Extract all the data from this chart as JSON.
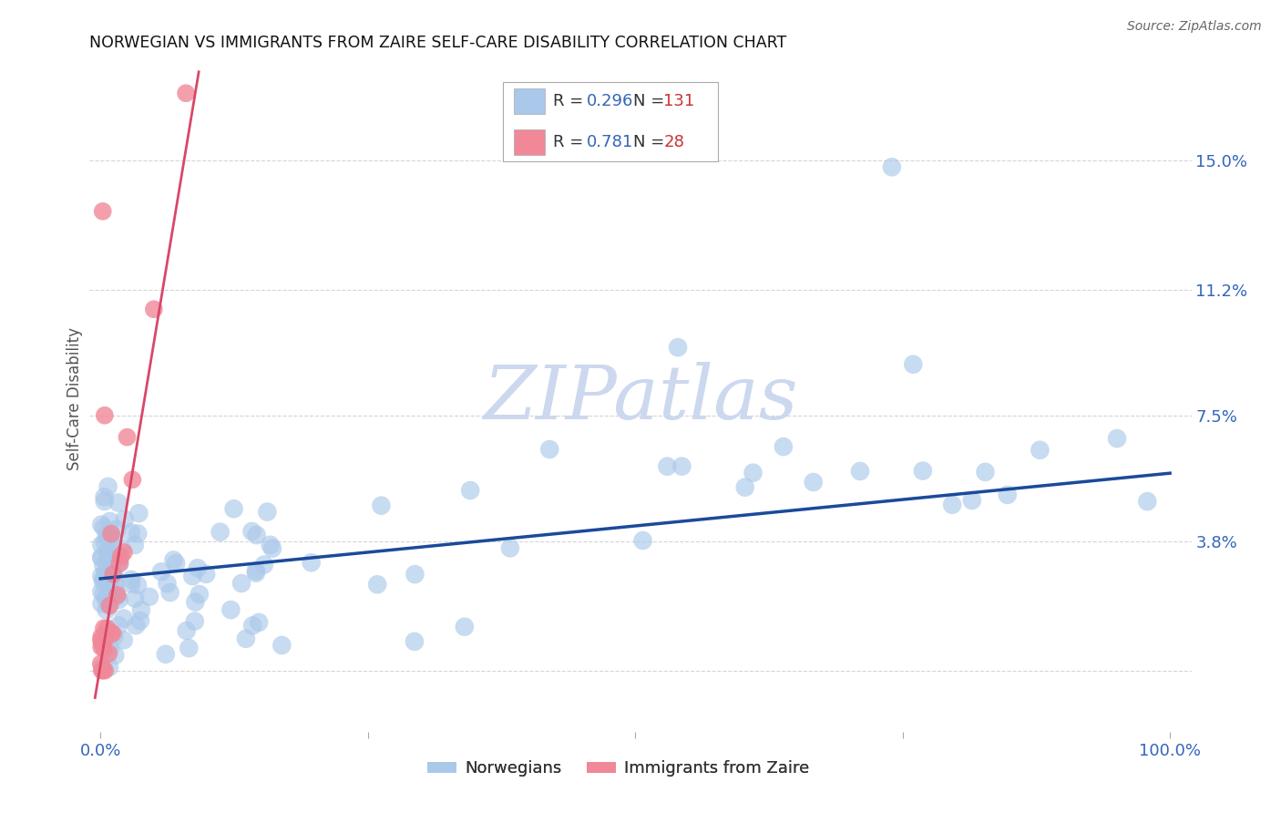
{
  "title": "NORWEGIAN VS IMMIGRANTS FROM ZAIRE SELF-CARE DISABILITY CORRELATION CHART",
  "source": "Source: ZipAtlas.com",
  "ylabel": "Self-Care Disability",
  "xlim": [
    -0.01,
    1.02
  ],
  "ylim": [
    -0.018,
    0.178
  ],
  "xtick_positions": [
    0.0,
    0.25,
    0.5,
    0.75,
    1.0
  ],
  "xtick_labels": [
    "0.0%",
    "",
    "",
    "",
    "100.0%"
  ],
  "ytick_positions": [
    0.0,
    0.038,
    0.075,
    0.112,
    0.15
  ],
  "ytick_labels": [
    "",
    "3.8%",
    "7.5%",
    "11.2%",
    "15.0%"
  ],
  "grid_color": "#d5d5d5",
  "background_color": "#ffffff",
  "norwegian_color": "#aac8ea",
  "zaire_color": "#f08898",
  "norwegian_line_color": "#1a4a9a",
  "zaire_line_color": "#d84868",
  "R_norwegian": "0.296",
  "N_norwegian": "131",
  "R_zaire": "0.781",
  "N_zaire": "28",
  "legend_label_color": "#3366bb",
  "legend_n_color": "#cc3333",
  "watermark_color": "#ccd8ee",
  "title_color": "#111111",
  "axis_label_color": "#555555",
  "tick_label_color": "#3366bb"
}
